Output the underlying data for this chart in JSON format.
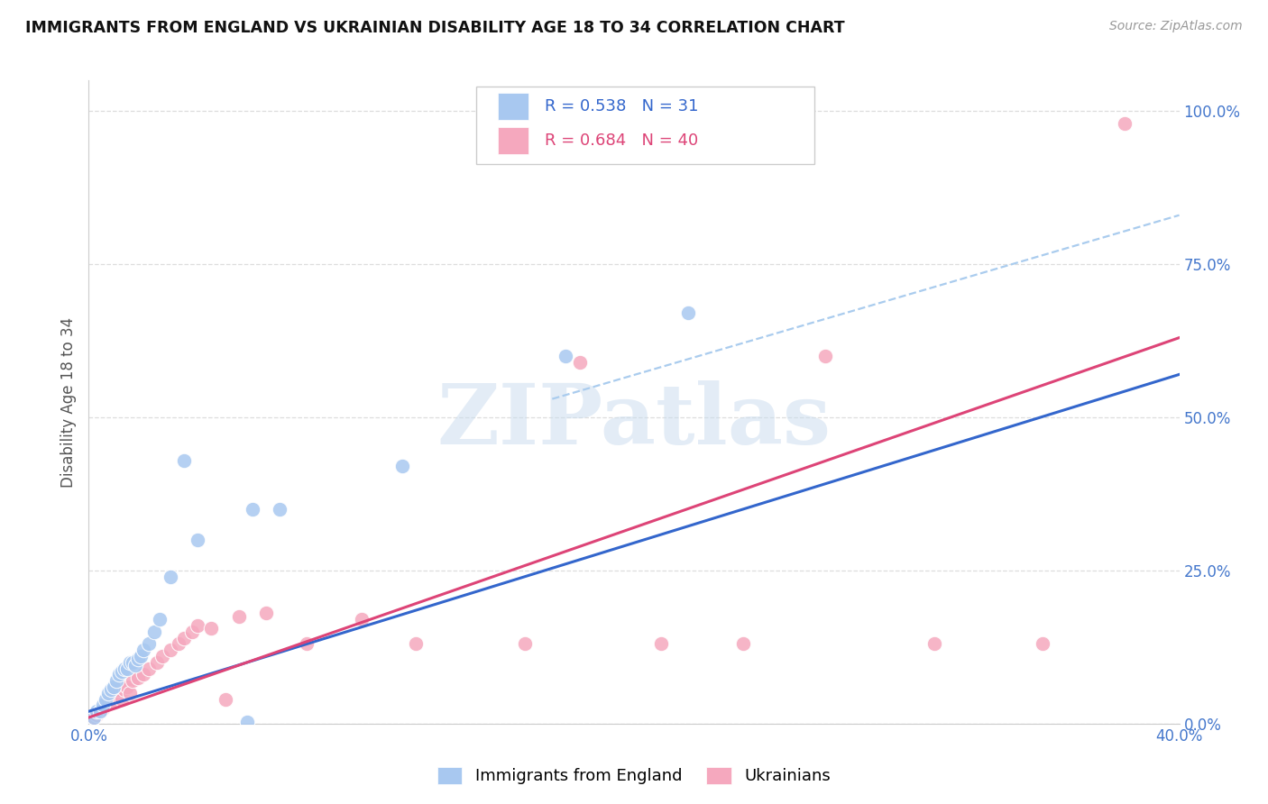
{
  "title": "IMMIGRANTS FROM ENGLAND VS UKRAINIAN DISABILITY AGE 18 TO 34 CORRELATION CHART",
  "source": "Source: ZipAtlas.com",
  "ylabel": "Disability Age 18 to 34",
  "xlim": [
    0.0,
    0.4
  ],
  "ylim": [
    0.0,
    1.05
  ],
  "blue_r": "0.538",
  "blue_n": "31",
  "pink_r": "0.684",
  "pink_n": "40",
  "blue_label": "Immigrants from England",
  "pink_label": "Ukrainians",
  "blue_scatter_color": "#a8c8f0",
  "pink_scatter_color": "#f5a8be",
  "blue_line_color": "#3366cc",
  "pink_line_color": "#dd4477",
  "dash_line_color": "#aaccee",
  "watermark_text": "ZIPatlas",
  "blue_line_x0": 0.0,
  "blue_line_y0": 0.02,
  "blue_line_x1": 0.4,
  "blue_line_y1": 0.57,
  "pink_line_x0": 0.0,
  "pink_line_y0": 0.01,
  "pink_line_x1": 0.4,
  "pink_line_y1": 0.63,
  "dash_line_x0": 0.17,
  "dash_line_y0": 0.53,
  "dash_line_x1": 0.4,
  "dash_line_y1": 0.83,
  "blue_x": [
    0.002,
    0.003,
    0.004,
    0.005,
    0.006,
    0.007,
    0.008,
    0.009,
    0.01,
    0.011,
    0.012,
    0.013,
    0.014,
    0.015,
    0.016,
    0.017,
    0.018,
    0.019,
    0.02,
    0.022,
    0.024,
    0.026,
    0.03,
    0.035,
    0.04,
    0.06,
    0.07,
    0.115,
    0.175,
    0.22,
    0.058
  ],
  "blue_y": [
    0.01,
    0.02,
    0.02,
    0.03,
    0.04,
    0.05,
    0.055,
    0.06,
    0.07,
    0.08,
    0.085,
    0.09,
    0.09,
    0.1,
    0.1,
    0.095,
    0.105,
    0.11,
    0.12,
    0.13,
    0.15,
    0.17,
    0.24,
    0.43,
    0.3,
    0.35,
    0.35,
    0.42,
    0.6,
    0.67,
    0.003
  ],
  "pink_x": [
    0.002,
    0.003,
    0.004,
    0.005,
    0.006,
    0.007,
    0.008,
    0.009,
    0.01,
    0.011,
    0.012,
    0.013,
    0.014,
    0.015,
    0.016,
    0.018,
    0.02,
    0.022,
    0.025,
    0.027,
    0.03,
    0.033,
    0.035,
    0.038,
    0.04,
    0.045,
    0.05,
    0.055,
    0.065,
    0.08,
    0.1,
    0.12,
    0.16,
    0.18,
    0.21,
    0.24,
    0.27,
    0.31,
    0.35,
    0.38
  ],
  "pink_y": [
    0.01,
    0.015,
    0.02,
    0.025,
    0.03,
    0.035,
    0.04,
    0.035,
    0.045,
    0.055,
    0.04,
    0.055,
    0.06,
    0.05,
    0.07,
    0.075,
    0.08,
    0.09,
    0.1,
    0.11,
    0.12,
    0.13,
    0.14,
    0.15,
    0.16,
    0.155,
    0.04,
    0.175,
    0.18,
    0.13,
    0.17,
    0.13,
    0.13,
    0.59,
    0.13,
    0.13,
    0.6,
    0.13,
    0.13,
    0.98
  ],
  "grid_color": "#dddddd",
  "title_color": "#111111",
  "axis_label_color": "#555555",
  "tick_color": "#4477cc"
}
